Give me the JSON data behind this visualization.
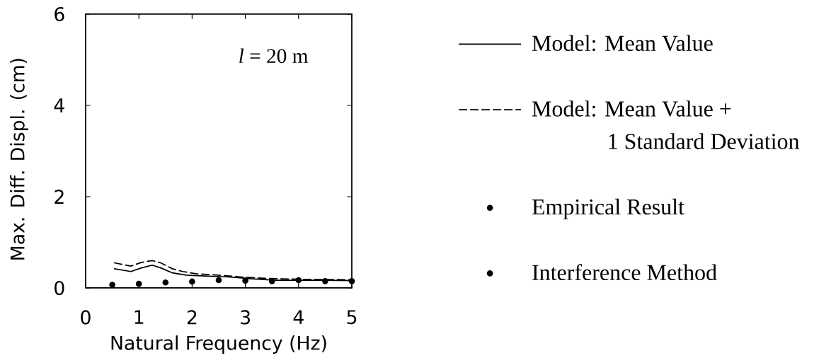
{
  "chart_data": {
    "type": "line",
    "xlabel": "Natural Frequency (Hz)",
    "ylabel": "Max. Diff. Displ. (cm)",
    "annotations": [
      "*l* = 20 m"
    ],
    "xlim": [
      0,
      5
    ],
    "ylim": [
      0,
      6
    ],
    "xticks": [
      0,
      1,
      2,
      3,
      4,
      5
    ],
    "yticks": [
      0,
      2,
      4,
      6
    ],
    "legend": "right",
    "series": [
      {
        "name": "Model: Mean Value",
        "line_style": "solid",
        "marker": "none",
        "color": "#000000",
        "x": [
          0.54,
          0.85,
          1.05,
          1.25,
          1.41,
          1.63,
          1.89,
          2.25,
          2.69,
          3.13,
          3.58,
          4.02,
          4.46,
          5
        ],
        "values": [
          0.42,
          0.36,
          0.44,
          0.5,
          0.44,
          0.33,
          0.28,
          0.26,
          0.24,
          0.2,
          0.17,
          0.17,
          0.17,
          0.16
        ]
      },
      {
        "name": "Model: Mean Value + 1 Standard Deviation",
        "line_style": "dashed",
        "marker": "none",
        "color": "#000000",
        "x": [
          0.54,
          0.85,
          1.05,
          1.25,
          1.41,
          1.63,
          1.82,
          2.09,
          2.48,
          2.93,
          3.37,
          4.02,
          5
        ],
        "values": [
          0.55,
          0.48,
          0.56,
          0.6,
          0.55,
          0.42,
          0.36,
          0.31,
          0.28,
          0.24,
          0.21,
          0.19,
          0.18
        ]
      },
      {
        "name": "Empirical Result",
        "type": "scatter",
        "marker": "circle",
        "color": "#000000",
        "x": [
          0.5,
          1,
          2,
          3.5,
          4,
          5
        ],
        "values": [
          0.07,
          0.09,
          0.14,
          0.15,
          0.17,
          0.15
        ]
      },
      {
        "name": "Interference Method",
        "type": "scatter",
        "marker": "circle",
        "color": "#000000",
        "x": [
          1.5,
          2.5,
          3,
          4.5
        ],
        "values": [
          0.12,
          0.17,
          0.16,
          0.15
        ]
      }
    ]
  }
}
